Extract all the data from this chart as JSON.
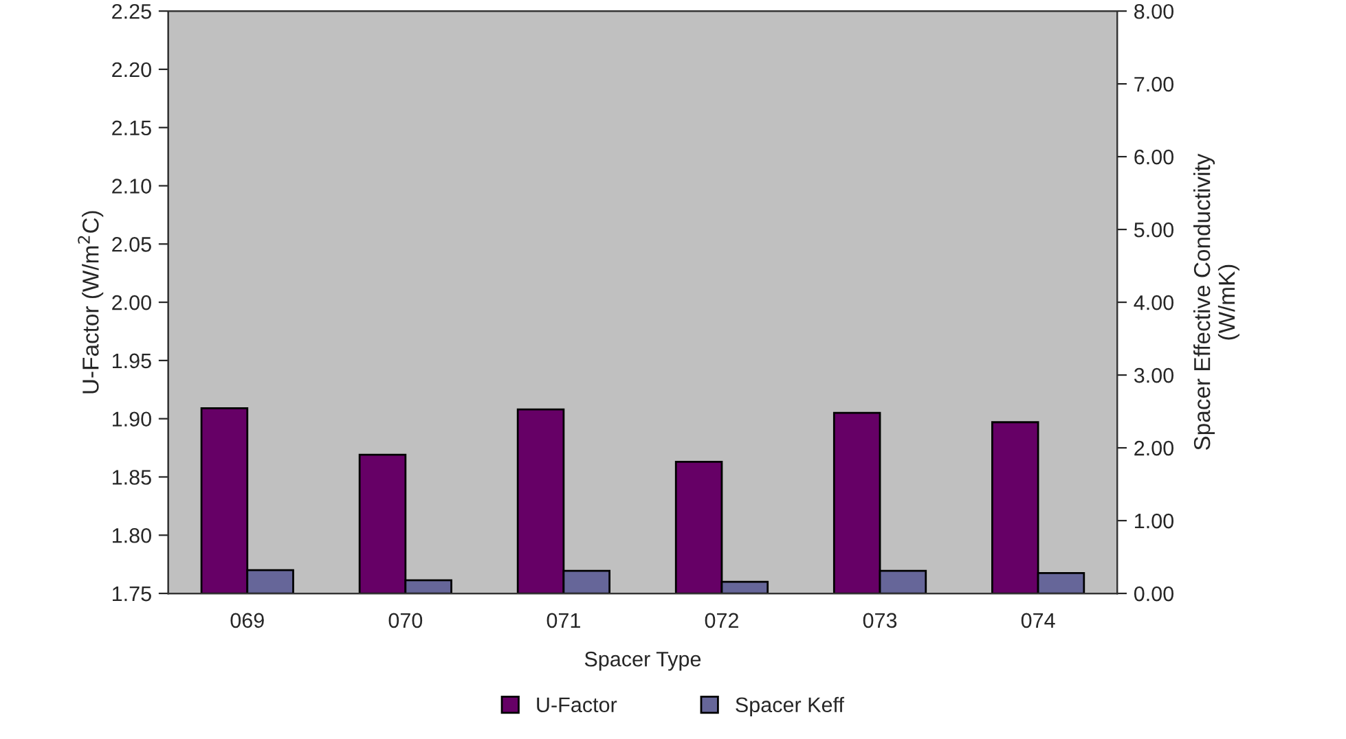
{
  "chart_data": {
    "type": "bar",
    "xlabel": "Spacer Type",
    "ylabel": "U-Factor (W/m$^{2}$C)",
    "y2label": "Spacer Effective Conductivity\n(W/mK)",
    "categories": [
      "069",
      "070",
      "071",
      "072",
      "073",
      "074"
    ],
    "series": [
      {
        "name": "U-Factor",
        "color": "#660066",
        "values": [
          1.909,
          1.869,
          1.908,
          1.863,
          1.905,
          1.897
        ]
      },
      {
        "name": "Spacer Keff",
        "color": "#666699",
        "axis": "y2",
        "values": [
          0.32,
          0.18,
          0.31,
          0.16,
          0.31,
          0.28
        ]
      }
    ],
    "ylim": [
      1.75,
      2.25
    ],
    "yticks": [
      {
        "value": 1.75,
        "label": "1.75"
      },
      {
        "value": 1.8,
        "label": "1.80"
      },
      {
        "value": 1.85,
        "label": "1.85"
      },
      {
        "value": 1.9,
        "label": "1.90"
      },
      {
        "value": 1.95,
        "label": "1.95"
      },
      {
        "value": 2.0,
        "label": "2.00"
      },
      {
        "value": 2.05,
        "label": "2.05"
      },
      {
        "value": 2.1,
        "label": "2.10"
      },
      {
        "value": 2.15,
        "label": "2.15"
      },
      {
        "value": 2.2,
        "label": "2.20"
      },
      {
        "value": 2.25,
        "label": "2.25"
      }
    ],
    "y2lim": [
      0,
      8
    ],
    "y2ticks": [
      {
        "value": 0,
        "label": "0.00"
      },
      {
        "value": 1,
        "label": "1.00"
      },
      {
        "value": 2,
        "label": "2.00"
      },
      {
        "value": 3,
        "label": "3.00"
      },
      {
        "value": 4,
        "label": "4.00"
      },
      {
        "value": 5,
        "label": "5.00"
      },
      {
        "value": 6,
        "label": "6.00"
      },
      {
        "value": 7,
        "label": "7.00"
      },
      {
        "value": 8,
        "label": "8.00"
      }
    ],
    "legend": "bottom",
    "grid": false
  }
}
